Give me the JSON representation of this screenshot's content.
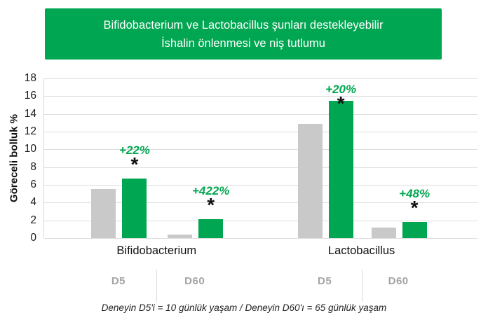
{
  "header": {
    "line1": "Bifidobacterium ve Lactobacillus şunları destekleyebilir",
    "line2": "İshalin önlenmesi ve niş tutlumu",
    "bg_color": "#00a651"
  },
  "chart_data": {
    "type": "bar",
    "title": "Bifidobacterium ve Lactobacillus şunları destekleyebilir İshalin önlenmesi ve niş tutlumu",
    "ylabel": "Göreceli bolluk %",
    "ylim": [
      0,
      18
    ],
    "ytick_step": 2,
    "grid": true,
    "legend": "none",
    "bar_colors": {
      "control": "#c9c9c9",
      "treatment": "#00a651"
    },
    "families": [
      {
        "label": "Bifidobacterium",
        "days": [
          {
            "label": "D5",
            "control": 5.5,
            "treatment": 6.7,
            "change": "+22%",
            "significance": "*"
          },
          {
            "label": "D60",
            "control": 0.4,
            "treatment": 2.1,
            "change": "+422%",
            "significance": "*"
          }
        ]
      },
      {
        "label": "Lactobacillus",
        "days": [
          {
            "label": "D5",
            "control": 12.9,
            "treatment": 15.5,
            "change": "+20%",
            "significance": "*"
          },
          {
            "label": "D60",
            "control": 1.2,
            "treatment": 1.8,
            "change": "+48%",
            "significance": "*"
          }
        ]
      }
    ]
  },
  "footer": {
    "note": "Deneyin D5'i = 10 günlük yaşam / Deneyin D60'ı = 65 günlük yaşam"
  }
}
